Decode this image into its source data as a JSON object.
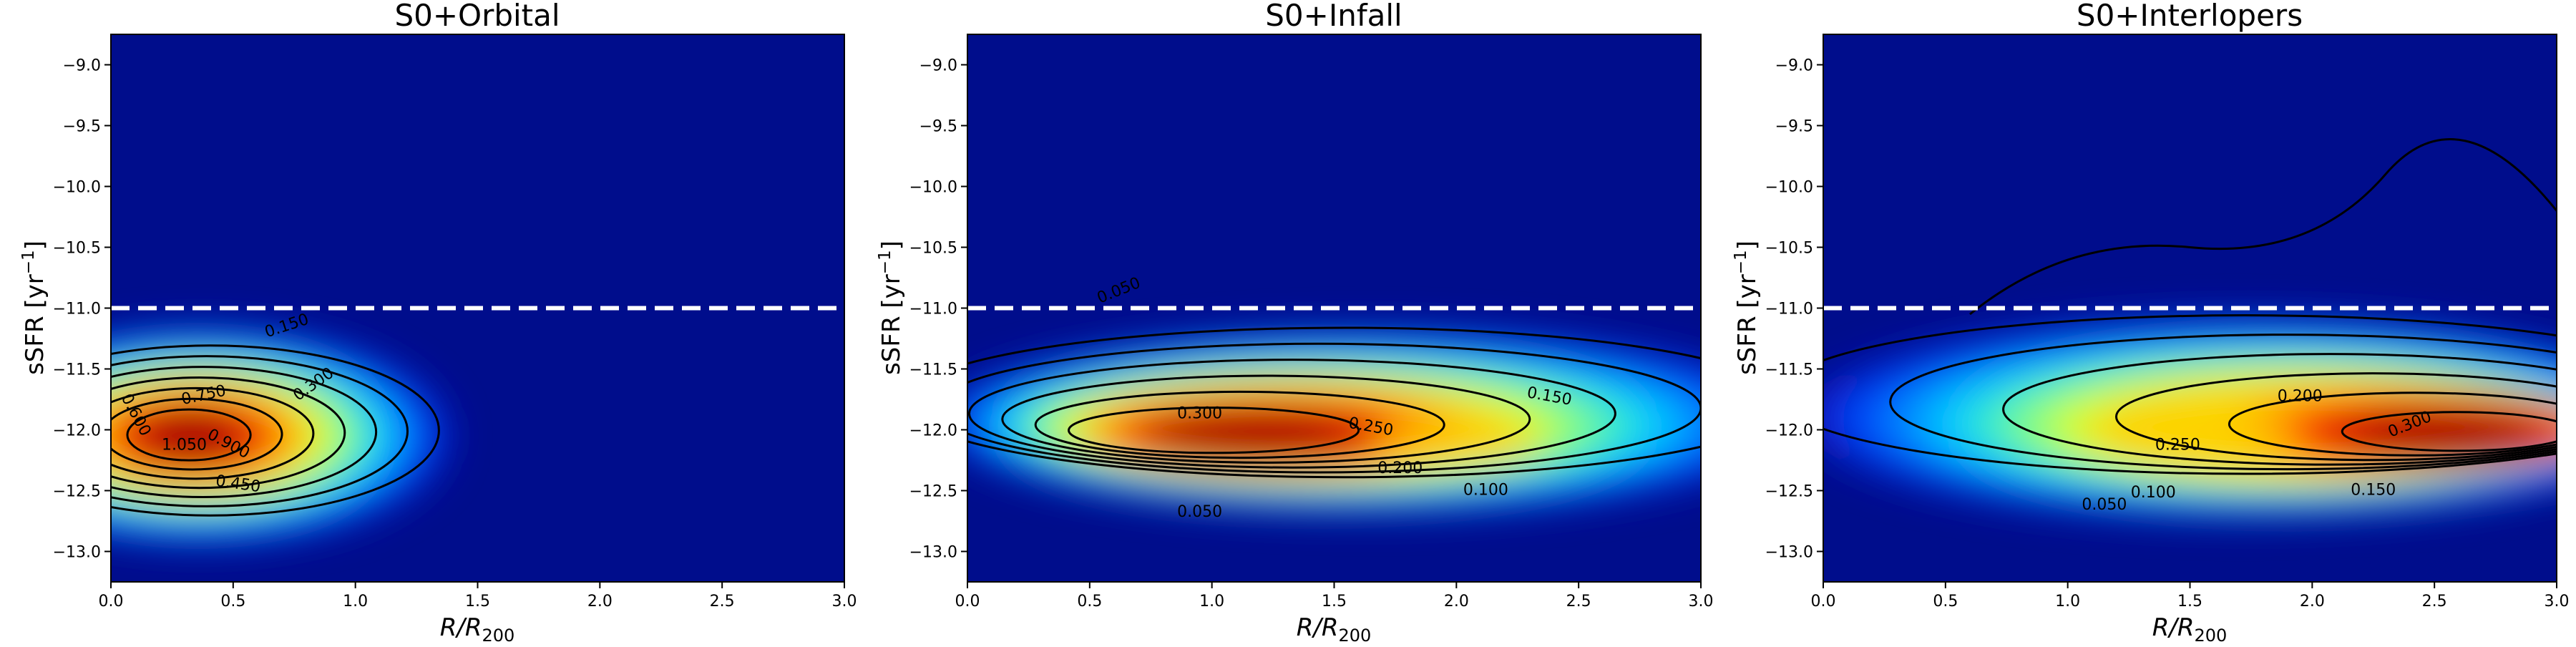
{
  "chart_data": [
    {
      "type": "heatmap",
      "title": "S0+Orbital",
      "xlabel_main": "R/R",
      "xlabel_sub": "200",
      "ylabel_main": "sSFR [yr",
      "ylabel_sup": "−1",
      "ylabel_end": "]",
      "xlim": [
        0.0,
        3.0
      ],
      "ylim": [
        -13.25,
        -8.75
      ],
      "xticks": [
        0.0,
        0.5,
        1.0,
        1.5,
        2.0,
        2.5,
        3.0
      ],
      "xtick_labels": [
        "0.0",
        "0.5",
        "1.0",
        "1.5",
        "2.0",
        "2.5",
        "3.0"
      ],
      "yticks": [
        -9.0,
        -9.5,
        -10.0,
        -10.5,
        -11.0,
        -11.5,
        -12.0,
        -12.5,
        -13.0
      ],
      "ytick_labels": [
        "−9.0",
        "−9.5",
        "−10.0",
        "−10.5",
        "−11.0",
        "−11.5",
        "−12.0",
        "−12.5",
        "−13.0"
      ],
      "threshold_line": {
        "y": -11.0,
        "style": "dashed",
        "color": "#ffffff"
      },
      "peak": {
        "x": 0.3,
        "y": -12.05,
        "max_density": 1.25
      },
      "contour_levels": [
        0.15,
        0.3,
        0.45,
        0.6,
        0.75,
        0.9,
        1.05
      ],
      "contour_labels": [
        {
          "text": "0.150",
          "x": 0.72,
          "y": -11.15,
          "angle": 18
        },
        {
          "text": "0.300",
          "x": 0.83,
          "y": -11.63,
          "angle": 35
        },
        {
          "text": "0.450",
          "x": 0.52,
          "y": -12.45,
          "angle": -8
        },
        {
          "text": "0.600",
          "x": 0.1,
          "y": -11.88,
          "angle": -62
        },
        {
          "text": "0.750",
          "x": 0.38,
          "y": -11.72,
          "angle": 12
        },
        {
          "text": "0.900",
          "x": 0.48,
          "y": -12.12,
          "angle": -28
        },
        {
          "text": "1.050",
          "x": 0.3,
          "y": -12.13,
          "angle": 0
        }
      ],
      "colormap": "jet"
    },
    {
      "type": "heatmap",
      "title": "S0+Infall",
      "xlabel_main": "R/R",
      "xlabel_sub": "200",
      "ylabel_main": "sSFR [yr",
      "ylabel_sup": "−1",
      "ylabel_end": "]",
      "xlim": [
        0.0,
        3.0
      ],
      "ylim": [
        -13.25,
        -8.75
      ],
      "xticks": [
        0.0,
        0.5,
        1.0,
        1.5,
        2.0,
        2.5,
        3.0
      ],
      "xtick_labels": [
        "0.0",
        "0.5",
        "1.0",
        "1.5",
        "2.0",
        "2.5",
        "3.0"
      ],
      "yticks": [
        -9.0,
        -9.5,
        -10.0,
        -10.5,
        -11.0,
        -11.5,
        -12.0,
        -12.5,
        -13.0
      ],
      "ytick_labels": [
        "−9.0",
        "−9.5",
        "−10.0",
        "−10.5",
        "−11.0",
        "−11.5",
        "−12.0",
        "−12.5",
        "−13.0"
      ],
      "threshold_line": {
        "y": -11.0,
        "style": "dashed",
        "color": "#ffffff"
      },
      "peak": {
        "x": 0.9,
        "y": -12.05,
        "max_density": 0.35
      },
      "contour_levels": [
        0.05,
        0.1,
        0.15,
        0.2,
        0.25,
        0.3
      ],
      "contour_labels": [
        {
          "text": "0.050",
          "x": 0.62,
          "y": -10.86,
          "angle": 22
        },
        {
          "text": "0.300",
          "x": 0.95,
          "y": -11.87,
          "angle": 0
        },
        {
          "text": "0.250",
          "x": 1.65,
          "y": -11.98,
          "angle": -10
        },
        {
          "text": "0.150",
          "x": 2.38,
          "y": -11.73,
          "angle": -10
        },
        {
          "text": "0.200",
          "x": 1.77,
          "y": -12.32,
          "angle": 0
        },
        {
          "text": "0.100",
          "x": 2.12,
          "y": -12.5,
          "angle": 0
        },
        {
          "text": "0.050",
          "x": 0.95,
          "y": -12.68,
          "angle": 0
        }
      ],
      "colormap": "jet"
    },
    {
      "type": "heatmap",
      "title": "S0+Interlopers",
      "xlabel_main": "R/R",
      "xlabel_sub": "200",
      "ylabel_main": "sSFR [yr",
      "ylabel_sup": "−1",
      "ylabel_end": "]",
      "xlim": [
        0.0,
        3.0
      ],
      "ylim": [
        -13.25,
        -8.75
      ],
      "xticks": [
        0.0,
        0.5,
        1.0,
        1.5,
        2.0,
        2.5,
        3.0
      ],
      "xtick_labels": [
        "0.0",
        "0.5",
        "1.0",
        "1.5",
        "2.0",
        "2.5",
        "3.0"
      ],
      "yticks": [
        -9.0,
        -9.5,
        -10.0,
        -10.5,
        -11.0,
        -11.5,
        -12.0,
        -12.5,
        -13.0
      ],
      "ytick_labels": [
        "−9.0",
        "−9.5",
        "−10.0",
        "−10.5",
        "−11.0",
        "−11.5",
        "−12.0",
        "−12.5",
        "−13.0"
      ],
      "threshold_line": {
        "y": -11.0,
        "style": "dashed",
        "color": "#ffffff"
      },
      "peak": {
        "x": 2.7,
        "y": -12.05,
        "max_density": 0.33
      },
      "contour_levels": [
        0.05,
        0.1,
        0.15,
        0.2,
        0.25,
        0.3
      ],
      "contour_labels": [
        {
          "text": "0.200",
          "x": 1.95,
          "y": -11.73,
          "angle": 0
        },
        {
          "text": "0.250",
          "x": 1.45,
          "y": -12.13,
          "angle": 0
        },
        {
          "text": "0.300",
          "x": 2.4,
          "y": -11.96,
          "angle": 22
        },
        {
          "text": "0.100",
          "x": 1.35,
          "y": -12.52,
          "angle": 0
        },
        {
          "text": "0.150",
          "x": 2.25,
          "y": -12.5,
          "angle": 0
        },
        {
          "text": "0.050",
          "x": 1.15,
          "y": -12.62,
          "angle": 0
        }
      ],
      "colormap": "jet"
    }
  ]
}
